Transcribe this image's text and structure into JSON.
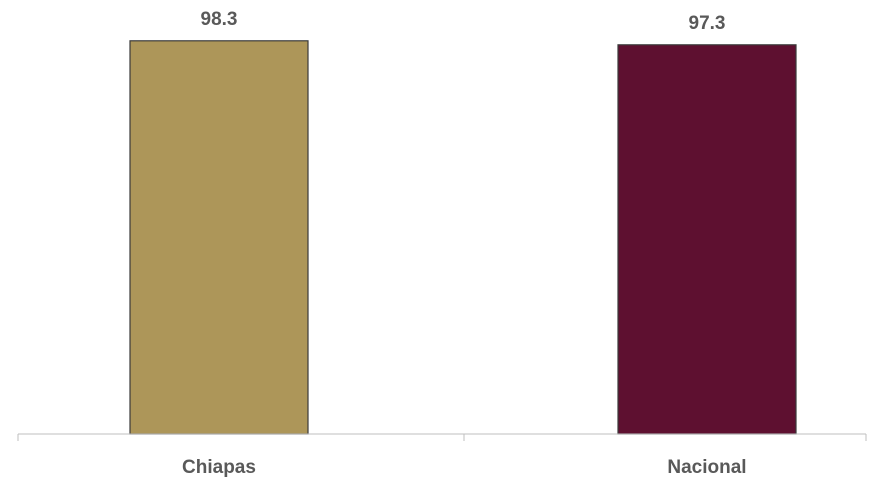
{
  "chart_data": {
    "type": "bar",
    "title": "",
    "categories": [
      "Chiapas",
      "Nacional"
    ],
    "values": [
      98.3,
      97.3
    ],
    "value_labels": [
      "98.3",
      "97.3"
    ],
    "colors": [
      "#AD9659",
      "#5E1030"
    ],
    "ylim": [
      0,
      100
    ],
    "grid": false,
    "legend": "none"
  }
}
